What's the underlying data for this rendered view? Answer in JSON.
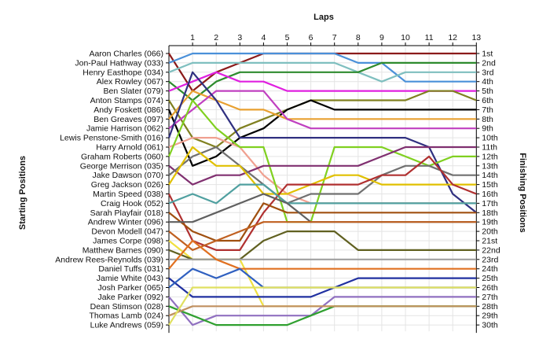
{
  "chart_data": {
    "type": "line",
    "title": "",
    "xlabel": "Laps",
    "ylabel_left": "Starting Positions",
    "ylabel_right": "Finishing Positions",
    "laps": [
      1,
      2,
      3,
      4,
      5,
      6,
      7,
      8,
      9,
      10,
      11,
      12,
      13
    ],
    "grid": true,
    "drivers": [
      "Aaron Charles (066)",
      "Jon-Paul Hathway (033)",
      "Henry Easthope (034)",
      "Alex Rowley (067)",
      "Ben Slater (079)",
      "Anton Stamps (074)",
      "Andy Foskett (086)",
      "Ben Greaves (097)",
      "Jamie Harrison (062)",
      "Lewis Penstone-Smith (016)",
      "Harry Arnold (061)",
      "Graham Roberts (060)",
      "George Merrison (035)",
      "Jake Dawson (070)",
      "Greg Jackson (026)",
      "Martin Speed (038)",
      "Craig Hook (052)",
      "Sarah Playfair (018)",
      "Andrew Winter (096)",
      "Devon Modell (047)",
      "James Corpe (098)",
      "Matthew Barnes (090)",
      "Andrew Rees-Reynolds (039)",
      "Daniel Tuffs (031)",
      "Jamie White (043)",
      "Josh Parker (065)",
      "Jake Parker (092)",
      "Dean Stimson (028)",
      "Thomas Lamb (024)",
      "Luke Andrews (059)"
    ],
    "finishing_labels": [
      "1st",
      "2nd",
      "3rd",
      "4th",
      "5th",
      "6th",
      "7th",
      "8th",
      "9th",
      "10th",
      "11th",
      "12th",
      "13th",
      "14th",
      "15th",
      "16th",
      "17th",
      "18th",
      "19th",
      "20th",
      "21st",
      "22nd",
      "23rd",
      "24th",
      "25th",
      "26th",
      "27th",
      "28th",
      "29th",
      "30th"
    ],
    "series": [
      {
        "color": "#8b1a1a",
        "positions": [
          1,
          5,
          3,
          2,
          1,
          1,
          1,
          1,
          1,
          1,
          1,
          1,
          1,
          1
        ]
      },
      {
        "color": "#4a90d9",
        "positions": [
          2,
          1,
          1,
          1,
          1,
          1,
          1,
          1,
          2,
          2,
          4,
          4,
          4,
          4
        ]
      },
      {
        "color": "#7fbfbf",
        "positions": [
          3,
          2,
          2,
          2,
          2,
          2,
          2,
          2,
          3,
          4,
          3,
          3,
          3,
          3
        ]
      },
      {
        "color": "#2e8b2e",
        "positions": [
          4,
          6,
          4,
          3,
          3,
          3,
          3,
          3,
          3,
          2,
          2,
          2,
          2,
          2
        ]
      },
      {
        "color": "#e020e0",
        "positions": [
          5,
          4,
          3,
          4,
          4,
          5,
          5,
          5,
          5,
          5,
          5,
          5,
          5,
          5
        ]
      },
      {
        "color": "#808020",
        "positions": [
          6,
          10,
          11,
          9,
          8,
          7,
          6,
          6,
          6,
          6,
          6,
          5,
          5,
          6
        ]
      },
      {
        "color": "#000000",
        "positions": [
          7,
          13,
          12,
          10,
          9,
          7,
          6,
          7,
          7,
          7,
          7,
          7,
          7,
          7
        ]
      },
      {
        "color": "#e8a030",
        "positions": [
          8,
          5,
          6,
          7,
          7,
          8,
          8,
          8,
          8,
          8,
          8,
          8,
          8,
          8
        ]
      },
      {
        "color": "#c040c0",
        "positions": [
          9,
          7,
          5,
          5,
          5,
          8,
          9,
          9,
          9,
          9,
          9,
          9,
          9,
          9
        ]
      },
      {
        "color": "#303080",
        "positions": [
          10,
          3,
          6,
          10,
          10,
          10,
          10,
          10,
          10,
          10,
          10,
          11,
          16,
          18
        ]
      },
      {
        "color": "#f0a090",
        "positions": [
          11,
          10,
          10,
          11,
          14,
          16,
          17,
          17,
          17,
          17,
          17,
          17,
          17,
          17
        ]
      },
      {
        "color": "#80d020",
        "positions": [
          12,
          6,
          9,
          11,
          11,
          19,
          19,
          11,
          11,
          11,
          12,
          13,
          12,
          12
        ]
      },
      {
        "color": "#803070",
        "positions": [
          13,
          15,
          14,
          14,
          13,
          13,
          13,
          13,
          13,
          12,
          11,
          11,
          11,
          11
        ]
      },
      {
        "color": "#707070",
        "positions": [
          14,
          12,
          11,
          13,
          15,
          17,
          16,
          16,
          16,
          14,
          13,
          13,
          14,
          14
        ]
      },
      {
        "color": "#e0c000",
        "positions": [
          15,
          11,
          13,
          13,
          16,
          16,
          15,
          14,
          14,
          15,
          15,
          15,
          15,
          15
        ]
      },
      {
        "color": "#b03030",
        "positions": [
          16,
          21,
          22,
          22,
          18,
          15,
          15,
          15,
          15,
          14,
          14,
          12,
          15,
          16
        ]
      },
      {
        "color": "#50a0a0",
        "positions": [
          17,
          16,
          17,
          15,
          15,
          17,
          17,
          17,
          17,
          17,
          17,
          17,
          17,
          17
        ]
      },
      {
        "color": "#a05010",
        "positions": [
          18,
          20,
          21,
          21,
          17,
          18,
          18,
          18,
          18,
          18,
          18,
          18,
          18,
          18
        ]
      },
      {
        "color": "#606060",
        "positions": [
          19,
          19,
          18,
          17,
          16,
          17,
          19,
          19,
          19,
          19,
          19,
          19,
          19,
          19
        ]
      },
      {
        "color": "#c06020",
        "positions": [
          20,
          22,
          21,
          20,
          19,
          19,
          19,
          19,
          19,
          19,
          19,
          19,
          19,
          19
        ]
      },
      {
        "color": "#f0e040",
        "positions": [
          21,
          23,
          23,
          23,
          28,
          28,
          28,
          28,
          28,
          28,
          28,
          28,
          28,
          28
        ]
      },
      {
        "color": "#606020",
        "positions": [
          22,
          23,
          23,
          23,
          21,
          20,
          20,
          20,
          22,
          22,
          22,
          22,
          22,
          22
        ]
      },
      {
        "color": "#a0a0a0",
        "positions": [
          23,
          23,
          23,
          23,
          23,
          23,
          23,
          23,
          23,
          23,
          23,
          23,
          23,
          23
        ]
      },
      {
        "color": "#e07020",
        "positions": [
          24,
          21,
          23,
          24,
          24,
          24,
          24,
          24,
          24,
          24,
          24,
          24,
          24,
          24
        ]
      },
      {
        "color": "#2030a0",
        "positions": [
          25,
          27,
          27,
          27,
          27,
          27,
          27,
          26,
          25,
          25,
          25,
          25,
          25,
          25
        ]
      },
      {
        "color": "#3060c0",
        "positions": [
          26,
          24,
          25,
          24,
          26,
          26,
          26,
          26,
          26,
          26,
          26,
          26,
          26,
          26
        ]
      },
      {
        "color": "#9070c0",
        "positions": [
          27,
          30,
          29,
          29,
          29,
          29,
          29,
          27,
          27,
          27,
          27,
          27,
          27,
          27
        ]
      },
      {
        "color": "#30a030",
        "positions": [
          28,
          29,
          30,
          30,
          30,
          30,
          29,
          28,
          28,
          28,
          28,
          28,
          28,
          28
        ]
      },
      {
        "color": "#c09060",
        "positions": [
          29,
          28,
          28,
          28,
          28,
          28,
          28,
          28,
          28,
          28,
          28,
          28,
          28,
          28
        ]
      },
      {
        "color": "#e0e060",
        "positions": [
          30,
          26,
          26,
          26,
          26,
          26,
          26,
          26,
          26,
          26,
          26,
          26,
          26,
          26
        ]
      }
    ]
  }
}
